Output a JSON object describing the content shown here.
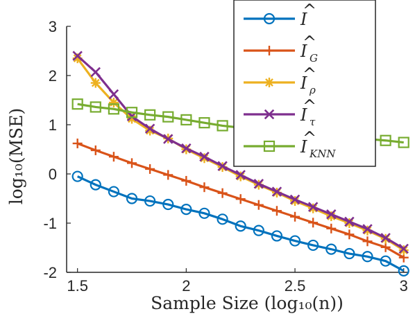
{
  "chart_data": {
    "type": "line",
    "title": "",
    "xlabel": "Sample Size (log₁₀(n))",
    "ylabel": "log₁₀(MSE)",
    "xlim": [
      1.45,
      3.02
    ],
    "ylim": [
      -2.0,
      3.0
    ],
    "xticks": [
      "1.5",
      "2",
      "2.5",
      "3"
    ],
    "xtick_values": [
      1.5,
      2,
      2.5,
      3
    ],
    "yticks": [
      "-2",
      "-1",
      "0",
      "1",
      "2",
      "3"
    ],
    "ytick_values": [
      -2,
      -1,
      0,
      1,
      2,
      3
    ],
    "grid": false,
    "legend_position": "top-right",
    "x": [
      1.5,
      1.5833,
      1.6667,
      1.75,
      1.8333,
      1.9167,
      2.0,
      2.0833,
      2.1667,
      2.25,
      2.3333,
      2.4167,
      2.5,
      2.5833,
      2.6667,
      2.75,
      2.8333,
      2.9167,
      3.0
    ],
    "series": [
      {
        "name": "Î",
        "legend_base": "I",
        "legend_sub": "",
        "color": "#0072BD",
        "marker": "circle",
        "values": [
          -0.05,
          -0.22,
          -0.36,
          -0.5,
          -0.55,
          -0.62,
          -0.72,
          -0.8,
          -0.92,
          -1.06,
          -1.15,
          -1.26,
          -1.36,
          -1.45,
          -1.53,
          -1.62,
          -1.68,
          -1.77,
          -1.97
        ]
      },
      {
        "name": "Î_G",
        "legend_base": "I",
        "legend_sub": "G",
        "color": "#D95319",
        "marker": "plus",
        "values": [
          0.62,
          0.48,
          0.35,
          0.22,
          0.1,
          -0.02,
          -0.14,
          -0.27,
          -0.39,
          -0.51,
          -0.63,
          -0.75,
          -0.87,
          -0.99,
          -1.11,
          -1.23,
          -1.37,
          -1.49,
          -1.7
        ]
      },
      {
        "name": "Î_ρ",
        "legend_base": "I",
        "legend_sub": "ρ",
        "color": "#EDB120",
        "marker": "asterisk",
        "values": [
          2.35,
          1.85,
          1.45,
          1.12,
          0.88,
          0.72,
          0.5,
          0.32,
          0.14,
          -0.05,
          -0.22,
          -0.38,
          -0.55,
          -0.7,
          -0.86,
          -1.0,
          -1.15,
          -1.32,
          -1.55
        ]
      },
      {
        "name": "Î_τ",
        "legend_base": "I",
        "legend_sub": "τ",
        "color": "#7E2F8E",
        "marker": "x",
        "values": [
          2.4,
          2.07,
          1.62,
          1.17,
          0.92,
          0.71,
          0.52,
          0.35,
          0.16,
          -0.02,
          -0.2,
          -0.36,
          -0.52,
          -0.67,
          -0.82,
          -0.97,
          -1.12,
          -1.3,
          -1.52
        ]
      },
      {
        "name": "Î_KNN",
        "legend_base": "I",
        "legend_sub": "KNN",
        "color": "#77AC30",
        "marker": "square",
        "values": [
          1.42,
          1.36,
          1.32,
          1.25,
          1.2,
          1.16,
          1.1,
          1.04,
          0.98,
          0.94,
          0.9,
          0.87,
          0.83,
          0.8,
          0.77,
          0.74,
          0.71,
          0.68,
          0.64
        ]
      }
    ]
  }
}
